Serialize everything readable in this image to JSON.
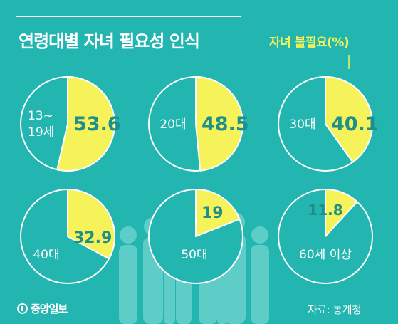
{
  "title": "연령대별 자녀 필요성 인식",
  "legend_label": "자녀 불필요(%)",
  "logo_text": "중앙일보",
  "source": "자료: 통계청",
  "colors": {
    "background": "#23b5b0",
    "slice": "#f5f25a",
    "pie_fill": "#23b5b0",
    "pie_stroke": "#ffffff",
    "value_text": "#1f8f8b",
    "silhouette": "#5fcdc7"
  },
  "chart_data": {
    "type": "pie",
    "title": "연령대별 자녀 필요성 인식",
    "series_name": "자녀 불필요(%)",
    "categories": [
      "13~19세",
      "20대",
      "30대",
      "40대",
      "50대",
      "60세 이상"
    ],
    "category_lines": [
      [
        "13~",
        "19세"
      ],
      [
        "20대"
      ],
      [
        "30대"
      ],
      [
        "40대"
      ],
      [
        "50대"
      ],
      [
        "60세 이상"
      ]
    ],
    "values": [
      53.6,
      48.5,
      40.1,
      32.9,
      19,
      11.8
    ],
    "value_labels": [
      "53.6",
      "48.5",
      "40.1",
      "32.9",
      "19",
      "11.8"
    ]
  }
}
